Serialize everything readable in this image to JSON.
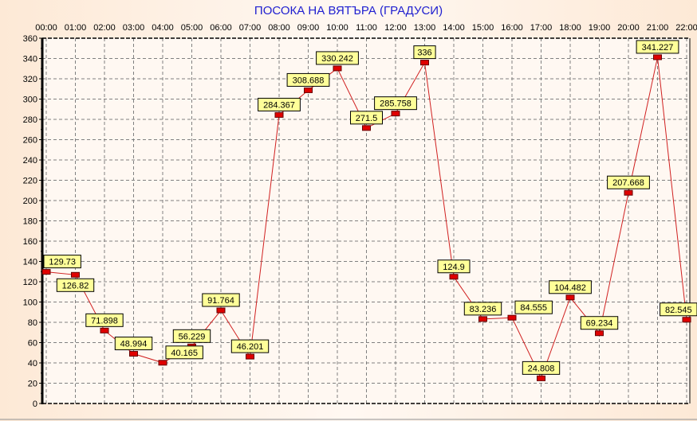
{
  "chart_data": {
    "type": "line",
    "title": "ПОСОКА НА ВЯТЪРА    (ГРАДУСИ)",
    "xlabel": "",
    "ylabel": "",
    "categories": [
      "00:00",
      "01:00",
      "02:00",
      "03:00",
      "04:00",
      "05:00",
      "06:00",
      "07:00",
      "08:00",
      "09:00",
      "10:00",
      "11:00",
      "12:00",
      "13:00",
      "14:00",
      "15:00",
      "16:00",
      "17:00",
      "18:00",
      "19:00",
      "20:00",
      "21:00",
      "22:00"
    ],
    "values": [
      129.73,
      126.82,
      71.898,
      48.994,
      40.165,
      56.229,
      91.764,
      46.201,
      284.367,
      308.688,
      330.242,
      271.5,
      285.758,
      336,
      124.9,
      83.236,
      84.555,
      24.808,
      104.482,
      69.234,
      207.668,
      341.227,
      82.545
    ],
    "data_labels": [
      "129.73",
      "126.82",
      "71.898",
      "48.994",
      "40.165",
      "56.229",
      "91.764",
      "46.201",
      "284.367",
      "308.688",
      "330.242",
      "271.5",
      "285.758",
      "336",
      "124.9",
      "83.236",
      "84.555",
      "24.808",
      "104.482",
      "69.234",
      "207.668",
      "341.227",
      "82.545"
    ],
    "ylim": [
      0,
      360
    ],
    "yticks": [
      "0",
      "20",
      "40",
      "60",
      "80",
      "100",
      "120",
      "140",
      "160",
      "180",
      "200",
      "220",
      "240",
      "260",
      "280",
      "300",
      "320",
      "340",
      "360"
    ],
    "grid": true,
    "x_axis_position": "top",
    "colors": {
      "line": "#d02020",
      "marker": "#e00000",
      "label_bg": "#ffff99",
      "title": "#2020d0",
      "grid": "#808080"
    }
  }
}
